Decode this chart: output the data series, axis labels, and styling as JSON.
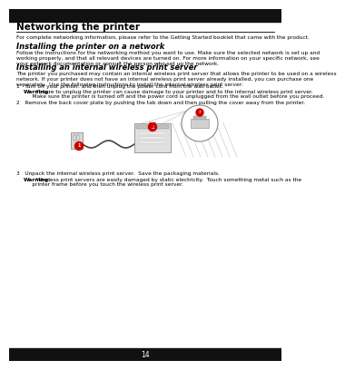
{
  "page_bg": "#ffffff",
  "title": "Networking the printer",
  "title_fontsize": 7.5,
  "subtitle1": "Installing the printer on a network",
  "subtitle1_fontsize": 6.0,
  "subtitle2": "Installing an internal wireless print server",
  "subtitle2_fontsize": 6.0,
  "intro_text": "For complete networking information, please refer to the Getting Started booklet that came with the product.",
  "section1_body": "Follow the instructions for the networking method you want to use. Make sure the selected network is set up and\nworking properly, and that all relevant devices are turned on. For more information on your specific network, see\nyour network documentation or consult the person who set up the network.",
  "section2_body": "The printer you purchased may contain an internal wireless print server that allows the printer to be used on a wireless\nnetwork. If your printer does not have an internal wireless print server already installed, you can purchase one\nseparately.  Use the following instructions to install the internal wireless print server:",
  "step1": "1   Turn off your printer, and then unplug the power cord from the wall outlet.",
  "warning1_bold": "Warning:",
  "warning1_rest": " Failure to unplug the printer can cause damage to your printer and to the internal wireless print server.\n     Make sure the printer is turned off and the power cord is unplugged from the wall outlet before you proceed.",
  "step2": "2   Remove the back cover plate by pushing the tab down and then pulling the cover away from the printer.",
  "step3": "3   Unpack the internal wireless print server.  Save the packaging materials.",
  "warning2_bold": "Warning:",
  "warning2_rest": " Wireless print servers are easily damaged by static electricity.  Touch something metal such as the\n     printer frame before you touch the wireless print server.",
  "page_number": "14",
  "accent_color": "#cc0000",
  "text_color": "#000000",
  "body_fontsize": 4.5,
  "warning_fontsize": 4.5
}
